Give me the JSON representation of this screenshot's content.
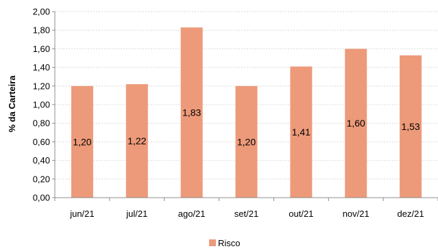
{
  "chart_data": {
    "type": "bar",
    "categories": [
      "jun/21",
      "jul/21",
      "ago/21",
      "set/21",
      "out/21",
      "nov/21",
      "dez/21"
    ],
    "series": [
      {
        "name": "Risco",
        "values": [
          1.2,
          1.22,
          1.83,
          1.2,
          1.41,
          1.6,
          1.53
        ],
        "labels": [
          "1,20",
          "1,22",
          "1,83",
          "1,20",
          "1,41",
          "1,60",
          "1,53"
        ],
        "color": "#ED9A7A"
      }
    ],
    "title": "",
    "xlabel": "",
    "ylabel": "% da Carteira",
    "ylim": [
      0,
      2.0
    ],
    "yticks": [
      0,
      0.2,
      0.4,
      0.6,
      0.8,
      1.0,
      1.2,
      1.4,
      1.6,
      1.8,
      2.0
    ],
    "ytick_labels": [
      "0,00",
      "0,20",
      "0,40",
      "0,60",
      "0,80",
      "1,00",
      "1,20",
      "1,40",
      "1,60",
      "1,80",
      "2,00"
    ],
    "grid": true,
    "legend": "bottom-center"
  }
}
